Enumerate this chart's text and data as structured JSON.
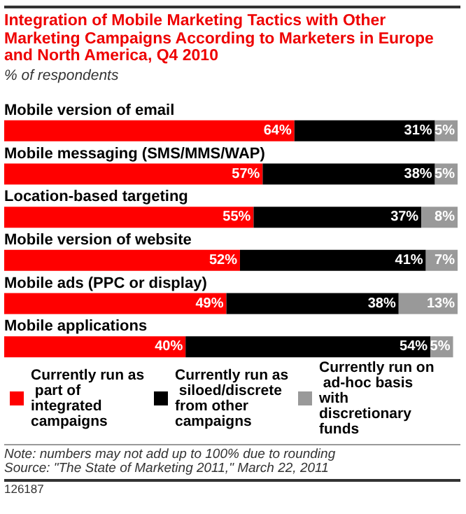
{
  "chart_data": {
    "type": "bar",
    "orientation": "horizontal",
    "stacked": true,
    "title": "Integration of Mobile Marketing Tactics with Other Marketing Campaigns According to Marketers in Europe and North America, Q4 2010",
    "subtitle": "% of respondents",
    "categories": [
      "Mobile version of email",
      "Mobile messaging (SMS/MMS/WAP)",
      "Location-based targeting",
      "Mobile version of website",
      "Mobile ads (PPC or display)",
      "Mobile applications"
    ],
    "series": [
      {
        "name": "Currently run as part of integrated campaigns",
        "color": "#ff0000",
        "values": [
          64,
          57,
          55,
          52,
          49,
          40
        ],
        "value_labels": [
          "64%",
          "57%",
          "55%",
          "52%",
          "49%",
          "40%"
        ]
      },
      {
        "name": "Currently run as siloed/discrete from other campaigns",
        "color": "#000000",
        "values": [
          31,
          38,
          37,
          41,
          38,
          54
        ],
        "value_labels": [
          "31%",
          "38%",
          "37%",
          "41%",
          "38%",
          "54%"
        ]
      },
      {
        "name": "Currently run on ad-hoc basis with discretionary funds",
        "color": "#999999",
        "values": [
          5,
          5,
          8,
          7,
          13,
          5
        ],
        "value_labels": [
          "5%",
          "5%",
          "8%",
          "7%",
          "13%",
          "5%"
        ]
      }
    ],
    "xlim": [
      0,
      100
    ],
    "tick_labels": "y",
    "legend": "bottom",
    "annotations": [
      "Note: numbers may not add up to 100% due to rounding",
      "Source: \"The State of Marketing 2011,\" March 22, 2011",
      "126187"
    ]
  }
}
